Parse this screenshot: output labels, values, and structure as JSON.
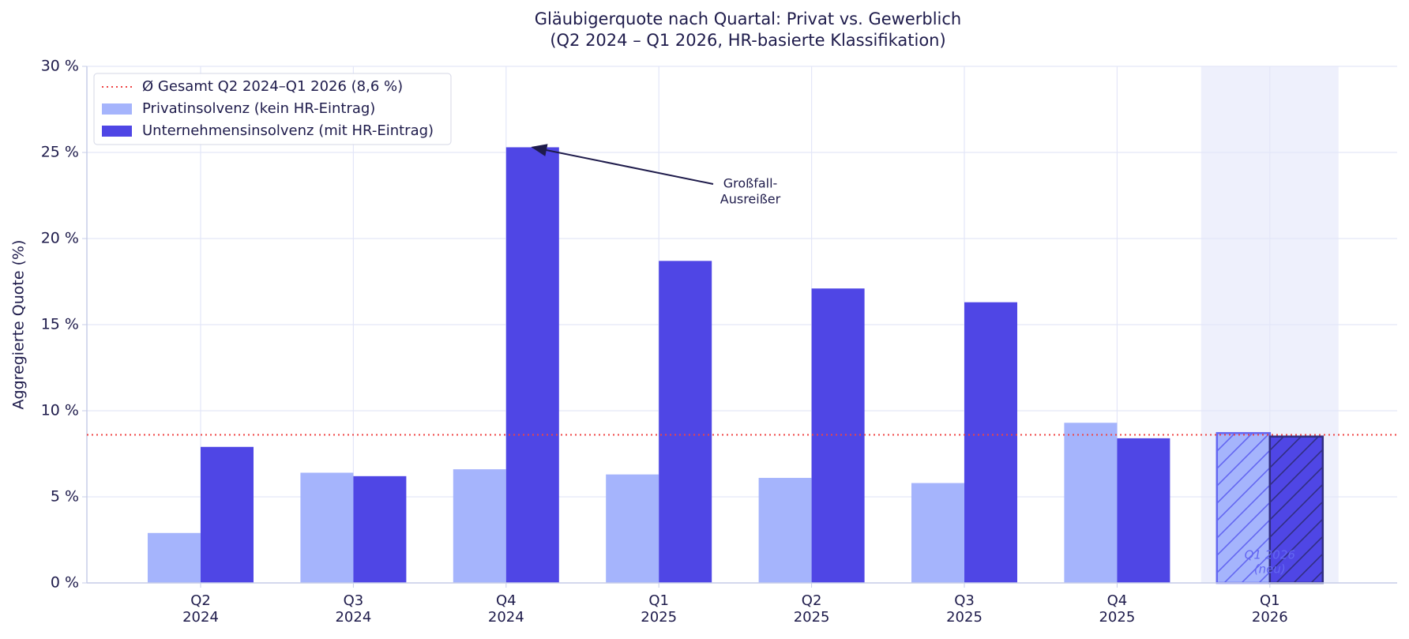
{
  "chart_data": {
    "type": "bar",
    "title": [
      "Gläubigerquote nach Quartal: Privat vs. Gewerblich",
      "(Q2 2024 – Q1 2026, HR-basierte Klassifikation)"
    ],
    "y_label": "Aggregierte Quote (%)",
    "categories": [
      [
        "Q2",
        "2024"
      ],
      [
        "Q3",
        "2024"
      ],
      [
        "Q4",
        "2024"
      ],
      [
        "Q1",
        "2025"
      ],
      [
        "Q2",
        "2025"
      ],
      [
        "Q3",
        "2025"
      ],
      [
        "Q4",
        "2025"
      ],
      [
        "Q1",
        "2026"
      ]
    ],
    "series": [
      {
        "name": "Privatinsolvenz (kein HR-Eintrag)",
        "color": "#a5b4fc",
        "values": [
          2.9,
          6.4,
          6.6,
          6.3,
          6.1,
          5.8,
          9.3,
          8.7
        ]
      },
      {
        "name": "Unternehmensinsolvenz (mit HR-Eintrag)",
        "color": "#4f46e5",
        "values": [
          7.9,
          6.2,
          25.3,
          18.7,
          17.1,
          16.3,
          8.4,
          8.5
        ]
      }
    ],
    "reference_line": {
      "value": 8.6,
      "name": "Ø Gesamt Q2 2024–Q1 2026 (8,6 %)",
      "color": "#ef4444"
    },
    "annotation_outlier": [
      "Großfall-",
      "Ausreißer"
    ],
    "annotation_new": [
      "Q1 2026",
      "(neu)"
    ],
    "ylim": [
      0,
      30
    ],
    "yticks": [
      {
        "value": 0,
        "label": "0 %"
      },
      {
        "value": 5,
        "label": "5 %"
      },
      {
        "value": 10,
        "label": "10 %"
      },
      {
        "value": 15,
        "label": "15 %"
      },
      {
        "value": 20,
        "label": "20 %"
      },
      {
        "value": 25,
        "label": "25 %"
      },
      {
        "value": 30,
        "label": "30 %"
      }
    ],
    "grid": true,
    "legend": "upper left"
  }
}
